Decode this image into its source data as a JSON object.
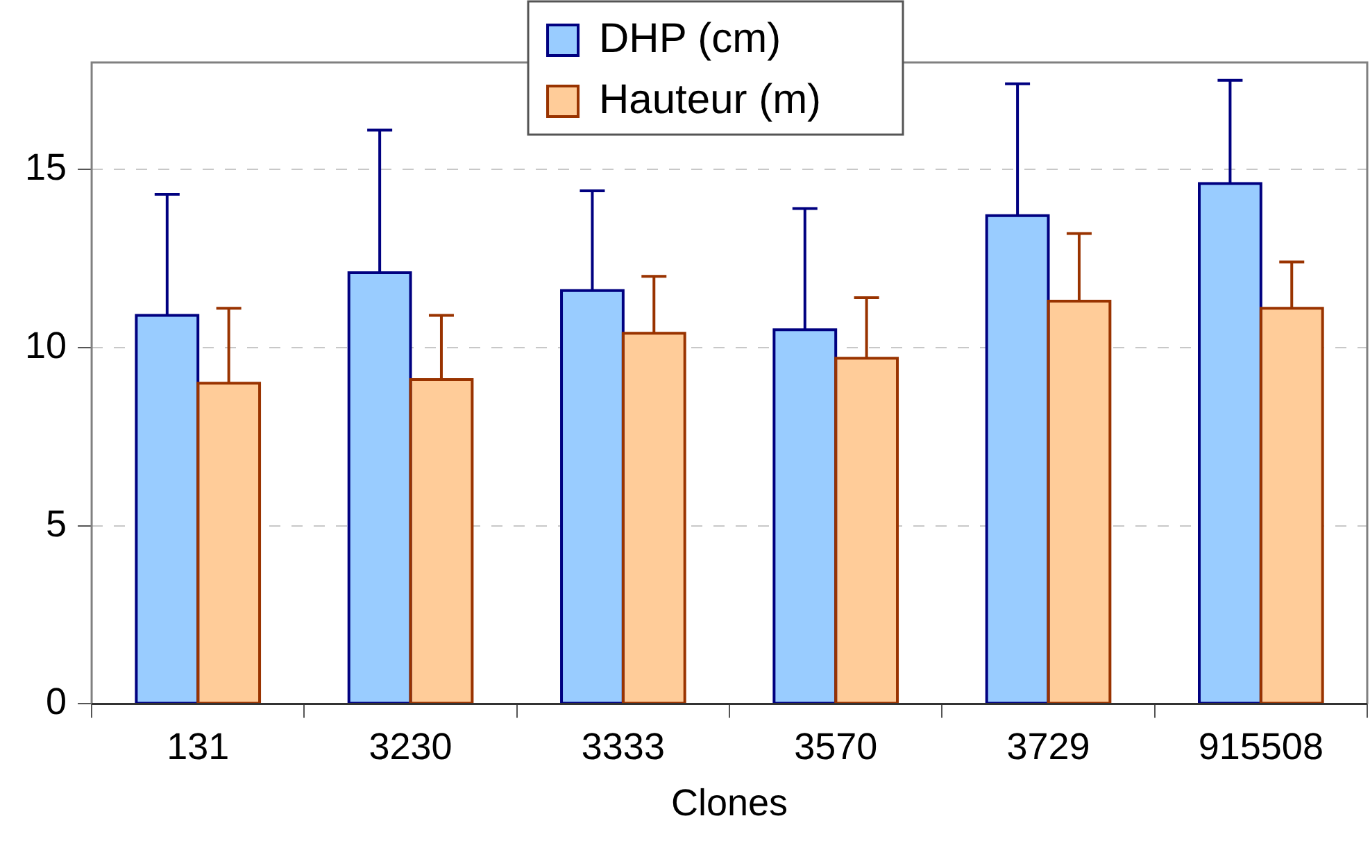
{
  "chart_data": {
    "type": "bar",
    "xlabel": "Clones",
    "categories": [
      "131",
      "3230",
      "3333",
      "3570",
      "3729",
      "915508"
    ],
    "series": [
      {
        "name": "DHP (cm)",
        "color": "#99ccff",
        "values": [
          10.9,
          12.1,
          11.6,
          10.5,
          13.7,
          14.6
        ],
        "errors": [
          [
            10.9,
            14.3
          ],
          [
            12.1,
            16.1
          ],
          [
            11.6,
            14.4
          ],
          [
            10.5,
            13.9
          ],
          [
            13.7,
            17.4
          ],
          [
            14.6,
            17.5
          ]
        ]
      },
      {
        "name": "Hauteur (m)",
        "color": "#ffcc99",
        "values": [
          9.0,
          9.1,
          10.4,
          9.7,
          11.3,
          11.1
        ],
        "errors": [
          [
            9.0,
            11.1
          ],
          [
            9.1,
            10.9
          ],
          [
            10.4,
            12.0
          ],
          [
            9.7,
            11.4
          ],
          [
            11.3,
            13.2
          ],
          [
            11.1,
            12.4
          ]
        ]
      }
    ],
    "ylim": [
      0,
      18
    ],
    "yticks": [
      0,
      5,
      10,
      15
    ],
    "grid": "y",
    "legend": "top"
  }
}
